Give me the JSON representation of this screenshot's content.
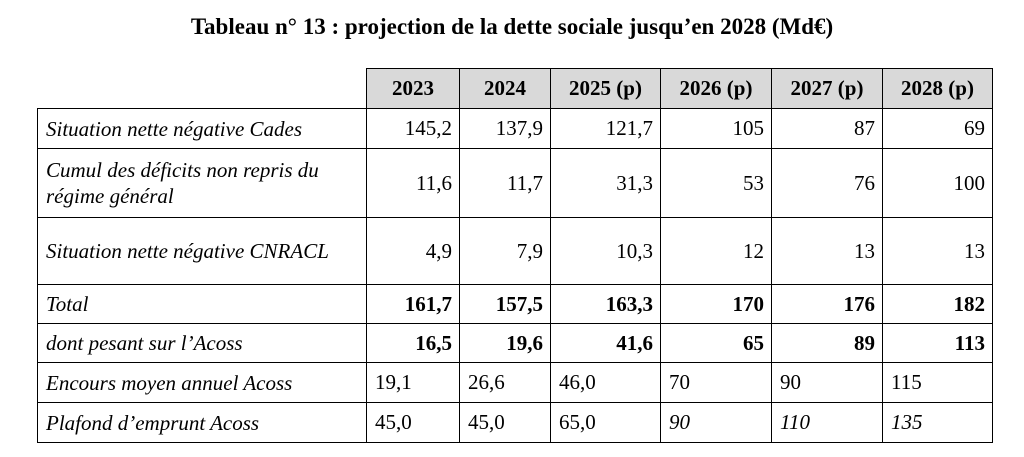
{
  "title": "Tableau n° 13 : projection de la dette sociale jusqu’en 2028 (Md€)",
  "table": {
    "years": [
      "2023",
      "2024",
      "2025 (p)",
      "2026 (p)",
      "2027 (p)",
      "2028 (p)"
    ],
    "rows": [
      {
        "label": "Situation nette négative Cades",
        "values": [
          "145,2",
          "137,9",
          "121,7",
          "105",
          "87",
          "69"
        ]
      },
      {
        "label": "Cumul des déficits non repris du régime général",
        "values": [
          "11,6",
          "11,7",
          "31,3",
          "53",
          "76",
          "100"
        ]
      },
      {
        "label": "Situation nette négative CNRACL",
        "values": [
          "4,9",
          "7,9",
          "10,3",
          "12",
          "13",
          "13"
        ]
      },
      {
        "label": "Total",
        "values": [
          "161,7",
          "157,5",
          "163,3",
          "170",
          "176",
          "182"
        ]
      },
      {
        "label": "dont pesant sur l’Acoss",
        "values": [
          "16,5",
          "19,6",
          "41,6",
          "65",
          "89",
          "113"
        ]
      },
      {
        "label": "Encours moyen annuel Acoss",
        "values": [
          "19,1",
          "26,6",
          "46,0",
          "70",
          "90",
          "115"
        ]
      },
      {
        "label": "Plafond d’emprunt Acoss",
        "values": [
          "45,0",
          "45,0",
          "65,0",
          "90",
          "110",
          "135"
        ]
      }
    ]
  }
}
